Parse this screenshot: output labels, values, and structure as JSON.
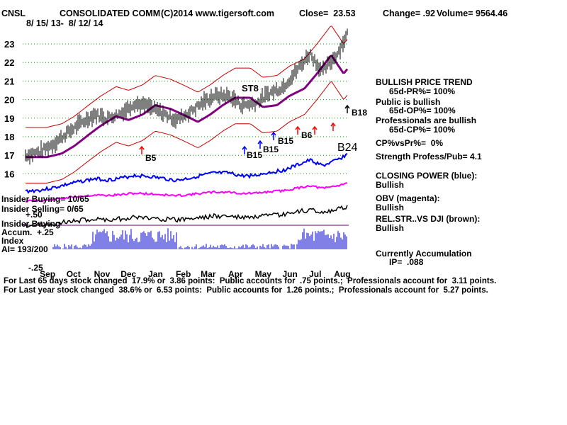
{
  "header": {
    "symbol": "CNSL",
    "company": "CONSOLIDATED COMM",
    "copyright": "(C)2014 www.tigersoft.com",
    "close": "Close=  23.53",
    "change": "Change= .92",
    "volume": "Volume= 9564.46",
    "date_range": "8/ 15/ 13-  8/ 12/ 14"
  },
  "chart_data": {
    "type": "line",
    "price_ticks": [
      "23",
      "22",
      "21",
      "20",
      "19",
      "18",
      "17",
      "16"
    ],
    "price_ylim": [
      16,
      23
    ],
    "months": [
      "Sep",
      "Oct",
      "Nov",
      "Dec",
      "Jan",
      "Feb",
      "Mar",
      "Apr",
      "May",
      "Jun",
      "Jul",
      "Aug"
    ],
    "accum_ticks": [
      "+.50",
      "+.25",
      "-.25"
    ],
    "price_series": {
      "name": "",
      "x": [
        "2013-08-15",
        "2013-09-01",
        "2013-09-15",
        "2013-10-01",
        "2013-10-15",
        "2013-11-01",
        "2013-11-15",
        "2013-12-01",
        "2013-12-15",
        "2014-01-01",
        "2014-01-15",
        "2014-02-01",
        "2014-02-15",
        "2014-03-01",
        "2014-03-15",
        "2014-04-01",
        "2014-04-15",
        "2014-05-01",
        "2014-05-15",
        "2014-06-01",
        "2014-06-15",
        "2014-07-01",
        "2014-07-15",
        "2014-08-01",
        "2014-08-12"
      ],
      "values": [
        17.0,
        17.2,
        17.6,
        18.2,
        18.7,
        19.2,
        19.0,
        19.3,
        19.8,
        19.6,
        19.3,
        18.9,
        19.3,
        19.8,
        20.2,
        20.2,
        19.7,
        19.8,
        20.3,
        20.7,
        21.5,
        22.5,
        21.5,
        22.5,
        23.53
      ]
    },
    "signals": [
      {
        "label": "B5"
      },
      {
        "label": "ST8"
      },
      {
        "label": "B15"
      },
      {
        "label": "B15"
      },
      {
        "label": "B15"
      },
      {
        "label": "B6"
      },
      {
        "label": "B24"
      },
      {
        "label": "B18"
      }
    ],
    "lines": [
      {
        "name": "CLOSING POWER (blue)",
        "color": "#0000ff"
      },
      {
        "name": "OBV (magenta)",
        "color": "#ff00ff"
      },
      {
        "name": "REL.STR..VS DJI (brown)",
        "color": "#8b0000"
      }
    ]
  },
  "panel_labels": {
    "insider_buying": "Insider Buying= 10/65",
    "insider_selling": "Insider Selling= 0/65",
    "insider_buying2": "Insider Buying",
    "accum": "Accum.",
    "index": "Index",
    "ai": "AI= 193/200"
  },
  "right_panel": {
    "trend_title": "BULLISH PRICE TREND",
    "pr": "65d-PR%= 100%",
    "public": "Public is bullish",
    "op": "65d-OP%= 100%",
    "pros": "Professionals are bullish",
    "cp": "65d-CP%= 100%",
    "cpvspr": "CP%vsPr%=  0%",
    "strength": "Strength Profess/Pub= 4.1",
    "closing_power": "CLOSING POWER (blue):",
    "closing_power_val": "Bullish",
    "obv": "OBV (magenta):",
    "obv_val": "Bullish",
    "relstr": "REL.STR..VS DJI (brown):",
    "relstr_val": "Bullish",
    "accum_title": "Currently Accumulation",
    "ip": "IP=  .088"
  },
  "footer": {
    "line1": "For Last 65 days stock changed  17.9% or  3.86 points:  Public accounts for  .75 points.;  Professionals account for  3.11 points.",
    "line2": "For Last year stock changed  38.6% or  6.53 points:  Public accounts for  1.26 points.;  Professionals account for  5.27 points."
  },
  "colors": {
    "price": "#000000",
    "band": "#cc0000",
    "ma": "#800080",
    "closing_power": "#0000ff",
    "obv": "#ff00ff",
    "relstr": "#8b0000",
    "accum": "#0000cc",
    "grid": "#009900",
    "arrow": "#ff0000"
  }
}
